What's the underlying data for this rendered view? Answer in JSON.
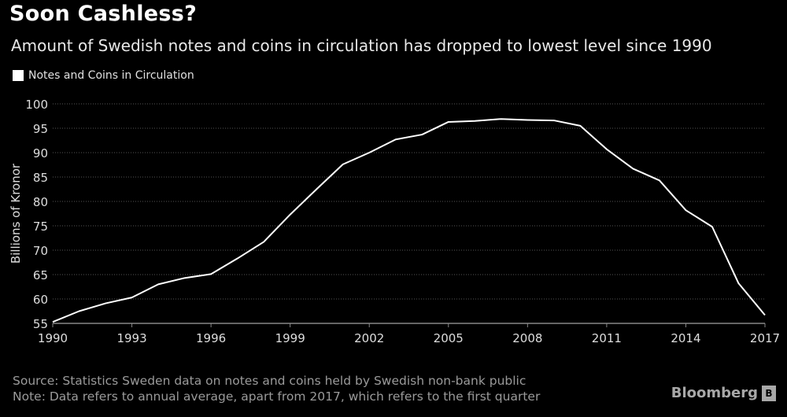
{
  "chart_data": {
    "type": "line",
    "title": "Soon Cashless?",
    "subtitle": "Amount of Swedish notes and coins in circulation has dropped to lowest level since 1990",
    "xlabel": "",
    "ylabel": "Billions of Kronor",
    "ylim": [
      55,
      100
    ],
    "xlim": [
      1990,
      2017
    ],
    "yticks": [
      55,
      60,
      65,
      70,
      75,
      80,
      85,
      90,
      95,
      100
    ],
    "xticks": [
      1990,
      1993,
      1996,
      1999,
      2002,
      2005,
      2008,
      2011,
      2014,
      2017
    ],
    "grid": "horizontal dotted",
    "legend_position": "top-left",
    "x": [
      1990,
      1991,
      1992,
      1993,
      1994,
      1995,
      1996,
      1997,
      1998,
      1999,
      2000,
      2001,
      2002,
      2003,
      2004,
      2005,
      2006,
      2007,
      2008,
      2009,
      2010,
      2011,
      2012,
      2013,
      2014,
      2015,
      2016,
      2017
    ],
    "series": [
      {
        "name": "Notes and Coins in Circulation",
        "color": "#ffffff",
        "values": [
          55.3,
          57.5,
          59.1,
          60.3,
          63.0,
          64.3,
          65.1,
          68.3,
          71.7,
          77.3,
          82.5,
          87.6,
          90.0,
          92.7,
          93.7,
          96.3,
          96.5,
          96.9,
          96.7,
          96.6,
          95.5,
          90.7,
          86.7,
          84.3,
          78.2,
          74.8,
          63.2,
          56.7
        ]
      }
    ]
  },
  "footer": {
    "source": "Source: Statistics Sweden data on notes and coins held by Swedish non-bank public",
    "note": "Note: Data refers to annual average, apart from 2017, which refers to the first quarter",
    "logo": "Bloomberg"
  }
}
